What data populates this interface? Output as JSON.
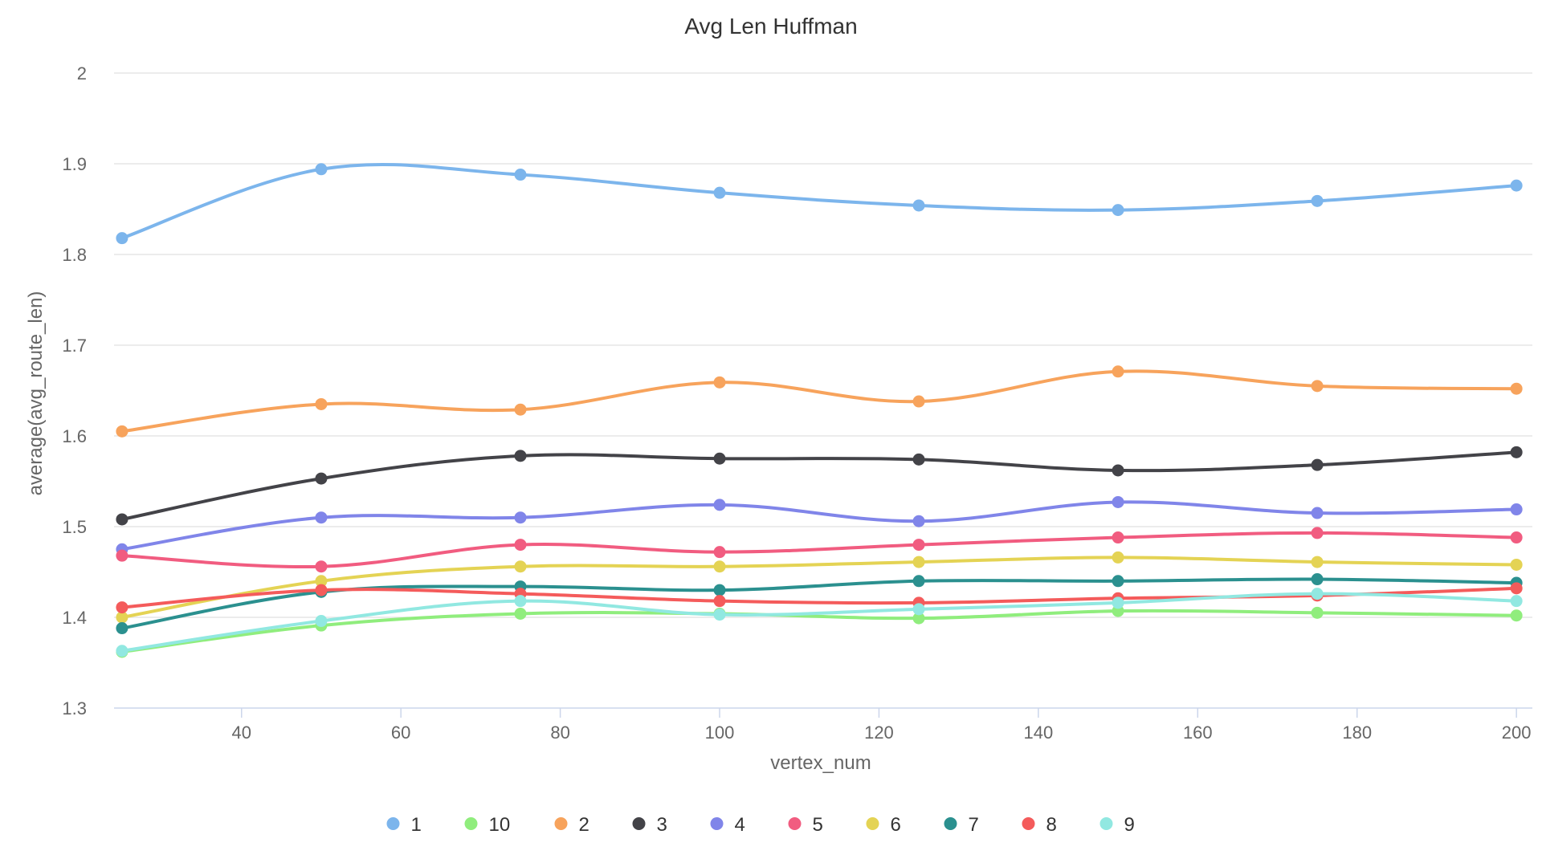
{
  "chart_data": {
    "type": "line",
    "title": "Avg Len Huffman",
    "xlabel": "vertex_num",
    "ylabel": "average(avg_route_len)",
    "xlim": [
      24,
      202
    ],
    "ylim": [
      1.3,
      2.0
    ],
    "x_ticks": [
      40,
      60,
      80,
      100,
      120,
      140,
      160,
      180,
      200
    ],
    "y_ticks": [
      1.3,
      1.4,
      1.5,
      1.6,
      1.7,
      1.8,
      1.9,
      2
    ],
    "y_tick_labels": [
      "1.3",
      "1.4",
      "1.5",
      "1.6",
      "1.7",
      "1.8",
      "1.9",
      "2"
    ],
    "grid": true,
    "legend_position": "bottom",
    "x": [
      25,
      50,
      75,
      100,
      125,
      150,
      175,
      200
    ],
    "series": [
      {
        "name": "1",
        "color": "#7cb5ec",
        "values": [
          1.818,
          1.894,
          1.888,
          1.868,
          1.854,
          1.849,
          1.859,
          1.876
        ]
      },
      {
        "name": "10",
        "color": "#90ed7d",
        "values": [
          1.362,
          1.391,
          1.404,
          1.404,
          1.399,
          1.407,
          1.405,
          1.402
        ]
      },
      {
        "name": "2",
        "color": "#f7a35c",
        "values": [
          1.605,
          1.635,
          1.629,
          1.659,
          1.638,
          1.671,
          1.655,
          1.652
        ]
      },
      {
        "name": "3",
        "color": "#434348",
        "values": [
          1.508,
          1.553,
          1.578,
          1.575,
          1.574,
          1.562,
          1.568,
          1.582
        ]
      },
      {
        "name": "4",
        "color": "#8085e9",
        "values": [
          1.475,
          1.51,
          1.51,
          1.524,
          1.506,
          1.527,
          1.515,
          1.519
        ]
      },
      {
        "name": "5",
        "color": "#f15c80",
        "values": [
          1.468,
          1.456,
          1.48,
          1.472,
          1.48,
          1.488,
          1.493,
          1.488
        ]
      },
      {
        "name": "6",
        "color": "#e4d354",
        "values": [
          1.4,
          1.44,
          1.456,
          1.456,
          1.461,
          1.466,
          1.461,
          1.458
        ]
      },
      {
        "name": "7",
        "color": "#2b908f",
        "values": [
          1.388,
          1.428,
          1.434,
          1.43,
          1.44,
          1.44,
          1.442,
          1.438
        ]
      },
      {
        "name": "8",
        "color": "#f45b5b",
        "values": [
          1.411,
          1.43,
          1.426,
          1.418,
          1.416,
          1.421,
          1.424,
          1.432
        ]
      },
      {
        "name": "9",
        "color": "#91e8e1",
        "values": [
          1.363,
          1.396,
          1.418,
          1.403,
          1.409,
          1.416,
          1.426,
          1.418
        ]
      }
    ]
  }
}
